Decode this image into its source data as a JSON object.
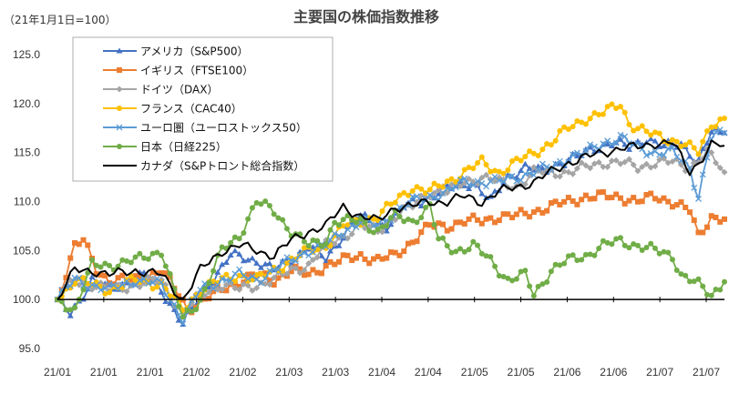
{
  "chart_data": {
    "type": "line",
    "title": "主要国の株価指数推移",
    "unit_label": "（21年1月1日=100）",
    "ylim": [
      95,
      125
    ],
    "yticks": [
      "95.0",
      "100.0",
      "105.0",
      "110.0",
      "115.0",
      "120.0",
      "125.0"
    ],
    "ytick_values": [
      95,
      100,
      105,
      110,
      115,
      120,
      125
    ],
    "xtick_labels": [
      "21/01",
      "21/01",
      "21/01",
      "21/02",
      "21/02",
      "21/03",
      "21/03",
      "21/04",
      "21/04",
      "21/05",
      "21/05",
      "21/06",
      "21/06",
      "21/07",
      "21/07"
    ],
    "baseline": 100,
    "legend": {
      "placement": "top-left"
    },
    "series": [
      {
        "name": "アメリカ（S&P500）",
        "color": "#4472C4",
        "marker": "triangle",
        "anchors": [
          [
            0,
            100
          ],
          [
            3,
            98.5
          ],
          [
            8,
            102
          ],
          [
            12,
            101
          ],
          [
            20,
            102.5
          ],
          [
            24,
            101
          ],
          [
            29,
            97.5
          ],
          [
            34,
            101
          ],
          [
            40,
            104.5
          ],
          [
            46,
            104
          ],
          [
            50,
            103
          ],
          [
            54,
            104
          ],
          [
            58,
            105.5
          ],
          [
            62,
            104
          ],
          [
            65,
            106
          ],
          [
            69,
            108.5
          ],
          [
            72,
            108
          ],
          [
            76,
            107.5
          ],
          [
            80,
            109.5
          ],
          [
            84,
            110
          ],
          [
            88,
            111
          ],
          [
            92,
            111.5
          ],
          [
            96,
            112
          ],
          [
            100,
            110
          ],
          [
            104,
            112.5
          ],
          [
            108,
            113.5
          ],
          [
            112,
            113
          ],
          [
            116,
            114
          ],
          [
            120,
            114.5
          ],
          [
            124,
            115.5
          ],
          [
            128,
            116
          ],
          [
            132,
            115.5
          ],
          [
            136,
            116.5
          ],
          [
            140,
            115.5
          ],
          [
            144,
            116
          ],
          [
            148,
            114
          ],
          [
            151,
            117
          ],
          [
            154,
            117
          ]
        ]
      },
      {
        "name": "イギリス（FTSE100）",
        "color": "#ED7D31",
        "marker": "square",
        "anchors": [
          [
            0,
            100
          ],
          [
            4,
            105.5
          ],
          [
            6,
            106
          ],
          [
            9,
            103
          ],
          [
            12,
            102
          ],
          [
            18,
            102
          ],
          [
            24,
            103
          ],
          [
            28,
            100.5
          ],
          [
            30,
            99
          ],
          [
            34,
            100
          ],
          [
            40,
            101.5
          ],
          [
            46,
            102.5
          ],
          [
            50,
            102
          ],
          [
            54,
            103
          ],
          [
            58,
            102.5
          ],
          [
            62,
            103.5
          ],
          [
            66,
            104
          ],
          [
            70,
            104.5
          ],
          [
            74,
            104
          ],
          [
            78,
            104.5
          ],
          [
            82,
            106
          ],
          [
            86,
            107.5
          ],
          [
            90,
            107.5
          ],
          [
            94,
            108
          ],
          [
            98,
            108
          ],
          [
            102,
            108.5
          ],
          [
            106,
            108.5
          ],
          [
            110,
            109
          ],
          [
            114,
            109.5
          ],
          [
            118,
            110
          ],
          [
            122,
            110.5
          ],
          [
            126,
            110.5
          ],
          [
            130,
            110.5
          ],
          [
            134,
            110
          ],
          [
            138,
            110.5
          ],
          [
            142,
            110
          ],
          [
            146,
            109
          ],
          [
            148,
            106.5
          ],
          [
            151,
            108.5
          ],
          [
            154,
            108.2
          ]
        ]
      },
      {
        "name": "ドイツ（DAX）",
        "color": "#A5A5A5",
        "marker": "diamond",
        "anchors": [
          [
            0,
            100
          ],
          [
            4,
            102
          ],
          [
            8,
            101.5
          ],
          [
            12,
            101
          ],
          [
            18,
            101.5
          ],
          [
            24,
            102
          ],
          [
            29,
            98.5
          ],
          [
            33,
            100.5
          ],
          [
            38,
            101.5
          ],
          [
            42,
            101
          ],
          [
            46,
            101.5
          ],
          [
            50,
            102
          ],
          [
            54,
            103
          ],
          [
            58,
            103.5
          ],
          [
            62,
            105.5
          ],
          [
            66,
            106.5
          ],
          [
            70,
            107.5
          ],
          [
            74,
            107
          ],
          [
            78,
            108.5
          ],
          [
            82,
            109.5
          ],
          [
            86,
            111
          ],
          [
            90,
            111
          ],
          [
            94,
            112
          ],
          [
            98,
            112.5
          ],
          [
            102,
            112
          ],
          [
            106,
            111.5
          ],
          [
            110,
            113
          ],
          [
            114,
            113
          ],
          [
            118,
            113
          ],
          [
            122,
            113.5
          ],
          [
            126,
            114
          ],
          [
            130,
            114
          ],
          [
            134,
            113.5
          ],
          [
            138,
            114
          ],
          [
            142,
            114
          ],
          [
            146,
            113.5
          ],
          [
            150,
            115
          ],
          [
            154,
            113
          ]
        ]
      },
      {
        "name": "フランス（CAC40）",
        "color": "#FFC000",
        "marker": "circle",
        "anchors": [
          [
            0,
            100
          ],
          [
            4,
            102
          ],
          [
            8,
            101.5
          ],
          [
            12,
            101
          ],
          [
            18,
            102
          ],
          [
            24,
            101.5
          ],
          [
            29,
            99
          ],
          [
            33,
            101
          ],
          [
            38,
            102
          ],
          [
            42,
            102.5
          ],
          [
            46,
            102
          ],
          [
            50,
            103
          ],
          [
            54,
            104
          ],
          [
            58,
            105
          ],
          [
            62,
            105.5
          ],
          [
            66,
            107.5
          ],
          [
            70,
            108
          ],
          [
            74,
            108.5
          ],
          [
            78,
            110
          ],
          [
            82,
            111.5
          ],
          [
            86,
            111
          ],
          [
            90,
            112
          ],
          [
            94,
            113
          ],
          [
            98,
            114
          ],
          [
            102,
            113
          ],
          [
            106,
            114
          ],
          [
            110,
            115
          ],
          [
            114,
            116
          ],
          [
            118,
            117.5
          ],
          [
            122,
            118.5
          ],
          [
            126,
            119
          ],
          [
            130,
            120
          ],
          [
            132,
            118
          ],
          [
            136,
            117
          ],
          [
            140,
            116.5
          ],
          [
            144,
            116
          ],
          [
            148,
            115
          ],
          [
            151,
            118
          ],
          [
            154,
            118.5
          ]
        ]
      },
      {
        "name": "ユーロ圏（ユーロストックス50）",
        "color": "#5B9BD5",
        "marker": "x",
        "anchors": [
          [
            0,
            100
          ],
          [
            4,
            102
          ],
          [
            8,
            101.5
          ],
          [
            12,
            101
          ],
          [
            18,
            102
          ],
          [
            24,
            101.5
          ],
          [
            29,
            98
          ],
          [
            33,
            101
          ],
          [
            38,
            102
          ],
          [
            42,
            102.5
          ],
          [
            46,
            102
          ],
          [
            50,
            103
          ],
          [
            54,
            104
          ],
          [
            58,
            105
          ],
          [
            62,
            105.5
          ],
          [
            66,
            107
          ],
          [
            70,
            108
          ],
          [
            74,
            107.5
          ],
          [
            78,
            109
          ],
          [
            82,
            110
          ],
          [
            86,
            110.5
          ],
          [
            90,
            111
          ],
          [
            94,
            112
          ],
          [
            98,
            112
          ],
          [
            102,
            112
          ],
          [
            106,
            112.5
          ],
          [
            110,
            113
          ],
          [
            114,
            113.5
          ],
          [
            118,
            114.5
          ],
          [
            122,
            115
          ],
          [
            126,
            116
          ],
          [
            130,
            116.5
          ],
          [
            134,
            115.5
          ],
          [
            138,
            115
          ],
          [
            142,
            115
          ],
          [
            146,
            113.5
          ],
          [
            148,
            110.5
          ],
          [
            151,
            116.5
          ],
          [
            154,
            117
          ]
        ]
      },
      {
        "name": "日本（日経225）",
        "color": "#70AD47",
        "marker": "circle",
        "anchors": [
          [
            0,
            100
          ],
          [
            4,
            99
          ],
          [
            8,
            103.5
          ],
          [
            12,
            103.5
          ],
          [
            18,
            104
          ],
          [
            24,
            105
          ],
          [
            29,
            98
          ],
          [
            33,
            100
          ],
          [
            38,
            105
          ],
          [
            42,
            106.5
          ],
          [
            46,
            110
          ],
          [
            50,
            109
          ],
          [
            54,
            107
          ],
          [
            58,
            105.5
          ],
          [
            62,
            106
          ],
          [
            64,
            108
          ],
          [
            70,
            108
          ],
          [
            74,
            107
          ],
          [
            78,
            108.5
          ],
          [
            82,
            108
          ],
          [
            86,
            109.5
          ],
          [
            88,
            106
          ],
          [
            92,
            105
          ],
          [
            96,
            105.5
          ],
          [
            100,
            104
          ],
          [
            104,
            102
          ],
          [
            108,
            102.5
          ],
          [
            110,
            100.5
          ],
          [
            114,
            103
          ],
          [
            118,
            104
          ],
          [
            122,
            104.5
          ],
          [
            126,
            105.5
          ],
          [
            130,
            106
          ],
          [
            134,
            105.5
          ],
          [
            138,
            105
          ],
          [
            142,
            104.5
          ],
          [
            144,
            102.5
          ],
          [
            148,
            101.5
          ],
          [
            151,
            100.5
          ],
          [
            154,
            101.8
          ]
        ]
      },
      {
        "name": "カナダ（S&Pトロント総合指数）",
        "color": "#000000",
        "marker": "none",
        "anchors": [
          [
            0,
            100
          ],
          [
            4,
            103
          ],
          [
            8,
            103
          ],
          [
            12,
            102.5
          ],
          [
            18,
            103
          ],
          [
            24,
            102.5
          ],
          [
            29,
            100
          ],
          [
            33,
            103
          ],
          [
            38,
            105
          ],
          [
            42,
            105.5
          ],
          [
            46,
            105
          ],
          [
            50,
            104.5
          ],
          [
            54,
            106
          ],
          [
            58,
            107
          ],
          [
            62,
            107.5
          ],
          [
            66,
            109.5
          ],
          [
            70,
            108.5
          ],
          [
            74,
            108
          ],
          [
            78,
            109.5
          ],
          [
            82,
            109.5
          ],
          [
            86,
            110
          ],
          [
            90,
            110
          ],
          [
            94,
            110.5
          ],
          [
            98,
            110
          ],
          [
            102,
            111
          ],
          [
            106,
            111.5
          ],
          [
            110,
            112
          ],
          [
            114,
            113
          ],
          [
            118,
            114
          ],
          [
            122,
            114.5
          ],
          [
            126,
            115
          ],
          [
            130,
            115.5
          ],
          [
            134,
            115.5
          ],
          [
            138,
            116
          ],
          [
            142,
            116
          ],
          [
            146,
            113
          ],
          [
            148,
            114
          ],
          [
            151,
            115.8
          ],
          [
            154,
            115.7
          ]
        ]
      }
    ]
  }
}
